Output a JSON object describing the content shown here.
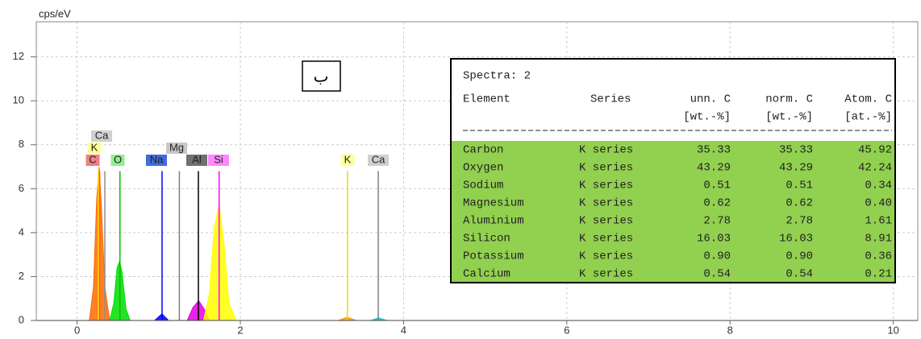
{
  "chart_data": {
    "type": "spectrum",
    "ylabel": "cps/eV",
    "xlim": [
      -0.5,
      10.3
    ],
    "ylim": [
      0,
      13.6
    ],
    "xticks": [
      0,
      2,
      4,
      6,
      8,
      10
    ],
    "yticks": [
      0,
      2,
      4,
      6,
      8,
      10,
      12
    ],
    "grid": true,
    "annotation": "ب",
    "peaks": [
      {
        "color": "#ff6a00",
        "x": [
          0.15,
          0.2,
          0.24,
          0.27,
          0.3,
          0.34,
          0.4
        ],
        "values": [
          0,
          1.5,
          5.5,
          7.0,
          5.0,
          1.5,
          0
        ]
      },
      {
        "color": "#00dd00",
        "x": [
          0.4,
          0.45,
          0.49,
          0.52,
          0.55,
          0.6,
          0.65
        ],
        "values": [
          0,
          0.8,
          2.4,
          2.7,
          2.2,
          0.5,
          0
        ]
      },
      {
        "color": "#0000ff",
        "x": [
          0.95,
          1.04,
          1.12
        ],
        "values": [
          0,
          0.3,
          0
        ]
      },
      {
        "color": "#e000e0",
        "x": [
          1.35,
          1.42,
          1.49,
          1.56,
          1.62
        ],
        "values": [
          0,
          0.6,
          0.9,
          0.5,
          0
        ]
      },
      {
        "color": "#ffff00",
        "x": [
          1.55,
          1.62,
          1.68,
          1.74,
          1.8,
          1.86,
          1.95
        ],
        "values": [
          0,
          1.2,
          4.2,
          5.3,
          3.5,
          0.8,
          0
        ]
      },
      {
        "color": "#ff9900",
        "x": [
          3.2,
          3.31,
          3.42
        ],
        "values": [
          0,
          0.15,
          0
        ]
      },
      {
        "color": "#00d0d0",
        "x": [
          3.6,
          3.69,
          3.8
        ],
        "values": [
          0,
          0.12,
          0
        ]
      }
    ],
    "markers": [
      {
        "label": "C",
        "x": 0.277,
        "height": 6.8,
        "color": "#ff6000",
        "box_color": "#f08080"
      },
      {
        "label": "O",
        "x": 0.525,
        "height": 6.8,
        "color": "#00c000",
        "box_color": "#90ee90"
      },
      {
        "label": "K",
        "x": 0.26,
        "height": 6.8,
        "color": "#ffd700",
        "box_color": "#ffff99"
      },
      {
        "label": "Ca",
        "x": 0.34,
        "height": 6.8,
        "color": "#909090",
        "box_color": "#d0d0d0"
      },
      {
        "label": "Na",
        "x": 1.041,
        "height": 6.8,
        "color": "#0000ff",
        "box_color": "#4169e1"
      },
      {
        "label": "Mg",
        "x": 1.253,
        "height": 6.8,
        "color": "#808080",
        "box_color": "#c8c8c8"
      },
      {
        "label": "Al",
        "x": 1.486,
        "height": 6.8,
        "color": "#000000",
        "box_color": "#707070"
      },
      {
        "label": "Si",
        "x": 1.74,
        "height": 6.8,
        "color": "#ff00ff",
        "box_color": "#ff88ff"
      },
      {
        "label": "K",
        "x": 3.313,
        "height": 6.8,
        "color": "#e0e000",
        "box_color": "#ffff99"
      },
      {
        "label": "Ca",
        "x": 3.69,
        "height": 6.8,
        "color": "#808080",
        "box_color": "#d0d0d0"
      }
    ]
  },
  "table": {
    "title": "Spectra: 2",
    "highlight_color": "#92d050",
    "headers": [
      "Element",
      "Series",
      "unn. C",
      "norm. C",
      "Atom. C"
    ],
    "units": [
      "[wt.-%]",
      "[wt.-%]",
      "[at.-%]"
    ],
    "rows": [
      [
        "Carbon",
        "K series",
        "35.33",
        "35.33",
        "45.92"
      ],
      [
        "Oxygen",
        "K series",
        "43.29",
        "43.29",
        "42.24"
      ],
      [
        "Sodium",
        "K series",
        "0.51",
        "0.51",
        "0.34"
      ],
      [
        "Magnesium",
        "K series",
        "0.62",
        "0.62",
        "0.40"
      ],
      [
        "Aluminium",
        "K series",
        "2.78",
        "2.78",
        "1.61"
      ],
      [
        "Silicon",
        "K series",
        "16.03",
        "16.03",
        "8.91"
      ],
      [
        "Potassium",
        "K series",
        "0.90",
        "0.90",
        "0.36"
      ],
      [
        "Calcium",
        "K series",
        "0.54",
        "0.54",
        "0.21"
      ]
    ]
  }
}
